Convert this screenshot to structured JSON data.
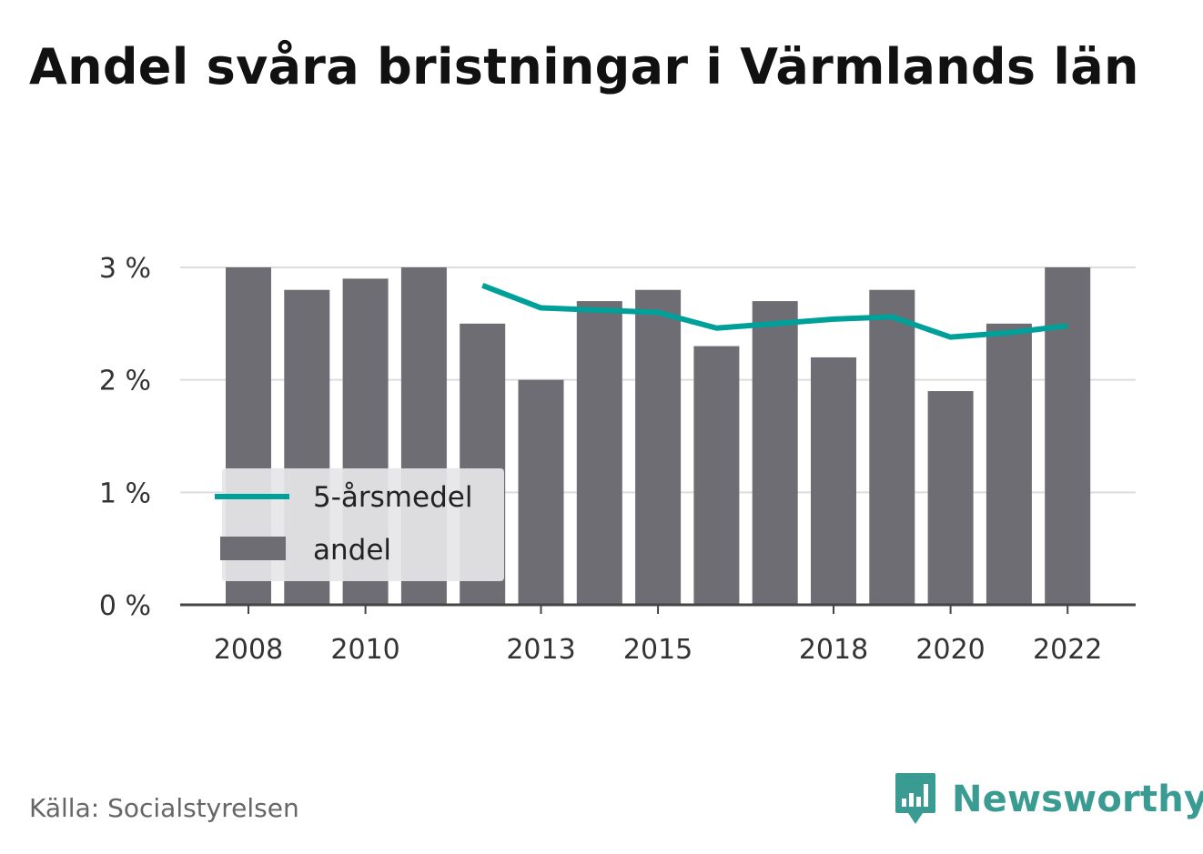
{
  "title": "Andel svåra bristningar i Värmlands län",
  "source": "Källa: Socialstyrelsen",
  "brand": {
    "name": "Newsworthy",
    "icon": "newsworthy-logo-icon"
  },
  "colors": {
    "bar": "#6e6d73",
    "line": "#00a09a",
    "grid": "#dddddd",
    "axis": "#444444",
    "brand": "#3a9b93",
    "legend_bg": "#e6e6e8"
  },
  "chart_data": {
    "type": "bar",
    "title": "Andel svåra bristningar i Värmlands län",
    "xlabel": "",
    "ylabel": "",
    "x": [
      2008,
      2009,
      2010,
      2011,
      2012,
      2013,
      2014,
      2015,
      2016,
      2017,
      2018,
      2019,
      2020,
      2021,
      2022
    ],
    "x_tick_labels": [
      "2008",
      "2010",
      "2013",
      "2015",
      "2018",
      "2020",
      "2022"
    ],
    "y_ticks": [
      0,
      1,
      2,
      3
    ],
    "y_tick_labels": [
      "0 %",
      "1 %",
      "2 %",
      "3 %"
    ],
    "ylim": [
      0,
      3
    ],
    "grid": true,
    "legend_position": "bottom-left",
    "series": [
      {
        "name": "andel",
        "type": "bar",
        "values": [
          3.0,
          2.8,
          2.9,
          3.0,
          2.5,
          2.0,
          2.7,
          2.8,
          2.3,
          2.7,
          2.2,
          2.8,
          1.9,
          2.5,
          3.0
        ]
      },
      {
        "name": "5-årsmedel",
        "type": "line",
        "values": [
          null,
          null,
          null,
          null,
          2.84,
          2.64,
          2.62,
          2.6,
          2.46,
          2.5,
          2.54,
          2.56,
          2.38,
          2.42,
          2.48
        ]
      }
    ]
  }
}
